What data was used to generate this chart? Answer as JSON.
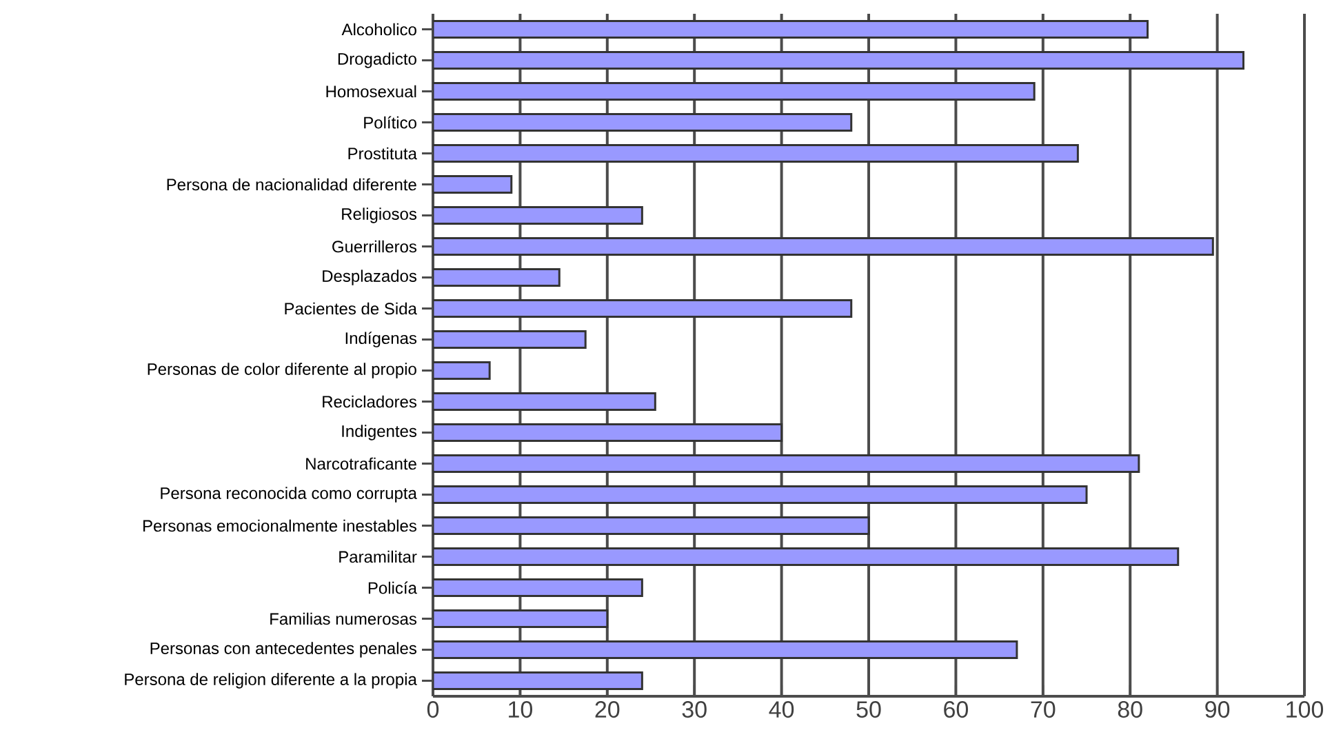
{
  "chart_data": {
    "type": "bar",
    "orientation": "horizontal",
    "categories": [
      "Alcoholico",
      "Drogadicto",
      "Homosexual",
      "Político",
      "Prostituta",
      "Persona de nacionalidad diferente",
      "Religiosos",
      "Guerrilleros",
      "Desplazados",
      "Pacientes de Sida",
      "Indígenas",
      "Personas de color diferente al propio",
      "Recicladores",
      "Indigentes",
      "Narcotraficante",
      "Persona reconocida como corrupta",
      "Personas emocionalmente inestables",
      "Paramilitar",
      "Policía",
      "Familias numerosas",
      "Personas con antecedentes penales",
      "Persona de religion diferente a la propia"
    ],
    "values": [
      82,
      93,
      69,
      48,
      74,
      9,
      24,
      89.5,
      14.5,
      48,
      17.5,
      6.5,
      25.5,
      40,
      81,
      75,
      50,
      85.5,
      24,
      20,
      67,
      24
    ],
    "color": "#9999ff",
    "xlim": [
      0,
      100
    ],
    "xticks": [
      0,
      10,
      20,
      30,
      40,
      50,
      60,
      70,
      80,
      90,
      100
    ],
    "grid": "x"
  }
}
